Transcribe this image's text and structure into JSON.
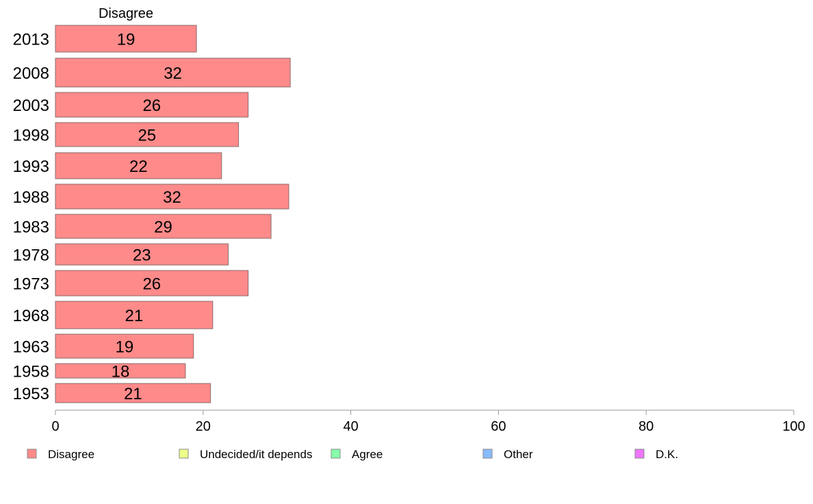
{
  "chart_data": {
    "type": "bar",
    "orientation": "horizontal",
    "series_title": "Disagree",
    "categories": [
      "2013",
      "2008",
      "2003",
      "1998",
      "1993",
      "1988",
      "1983",
      "1978",
      "1973",
      "1968",
      "1963",
      "1958",
      "1953"
    ],
    "series": [
      {
        "name": "Disagree",
        "color": "#ff8a8a",
        "values": [
          19,
          32,
          26,
          25,
          22,
          32,
          29,
          23,
          26,
          21,
          19,
          18,
          21
        ],
        "exact_values": [
          19.1,
          31.8,
          26.1,
          24.8,
          22.5,
          31.6,
          29.2,
          23.4,
          26.1,
          21.3,
          18.7,
          17.6,
          21.0
        ]
      }
    ],
    "xlim": [
      0,
      100
    ],
    "x_ticks": [
      0,
      20,
      40,
      60,
      80,
      100
    ],
    "legend": {
      "placement": "bottom",
      "items": [
        {
          "label": "Disagree",
          "color": "#ff8a8a"
        },
        {
          "label": "Undecided/it depends",
          "color": "#eeff88"
        },
        {
          "label": "Agree",
          "color": "#88ffaa"
        },
        {
          "label": "Other",
          "color": "#88bbff"
        },
        {
          "label": "D.K.",
          "color": "#ee77ff"
        }
      ]
    },
    "grid": false
  }
}
